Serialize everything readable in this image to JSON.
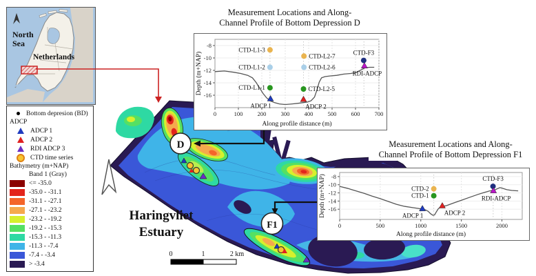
{
  "inset": {
    "sea_label": "North\nSea",
    "sea_label_1": "North",
    "sea_label_2": "Sea",
    "country_label": "Netherlands"
  },
  "legend": {
    "bd_label": "Bottom depresion (BD)",
    "adcp_header": "ADCP",
    "adcp_items": [
      {
        "label": "ADCP 1",
        "color": "#1f3bbf"
      },
      {
        "label": "ADCP 2",
        "color": "#e02020"
      },
      {
        "label": "RDI ADCP 3",
        "color": "#6a2fc4"
      }
    ],
    "ctd_label": "CTD time series",
    "bathy_header": "Bathymetry (m+NAP)",
    "band_label": "Band 1 (Gray)",
    "classes": [
      {
        "label": "<= -35.0",
        "color": "#8b0000"
      },
      {
        "label": "-35.0 - -31.1",
        "color": "#e3251c"
      },
      {
        "label": "-31.1 - -27.1",
        "color": "#f4652a"
      },
      {
        "label": "-27.1 - -23.2",
        "color": "#f5a94d"
      },
      {
        "label": "-23.2 - -19.2",
        "color": "#d7f02d"
      },
      {
        "label": "-19.2 - -15.3",
        "color": "#55e063"
      },
      {
        "label": "-15.3 - -11.3",
        "color": "#2ed9a3"
      },
      {
        "label": "-11.3 - -7.4",
        "color": "#3fb4e8"
      },
      {
        "label": "-7.4 - -3.4",
        "color": "#3a57d8"
      },
      {
        "label": "> -3.4",
        "color": "#2a1a53"
      }
    ]
  },
  "map": {
    "estuary_label_1": "Haringvliet",
    "estuary_label_2": "Estuary",
    "depression_d": "D",
    "depression_f1": "F1",
    "scalebar": {
      "t0": "0",
      "t1": "1",
      "t2": "2 km"
    }
  },
  "chart_data": [
    {
      "type": "line",
      "title_line1": "Measurement Locations and Along-",
      "title_line2": "Channel Profile of Bottom Depression D",
      "xlabel": "Along profile distance (m)",
      "ylabel": "Depth (m+NAP)",
      "xlim": [
        0,
        700
      ],
      "ylim": [
        -18,
        -7
      ],
      "xticks": [
        0,
        100,
        200,
        300,
        400,
        500,
        600,
        700
      ],
      "yticks": [
        -8,
        -10,
        -12,
        -14,
        -16
      ],
      "guides": [
        235,
        378,
        636
      ],
      "profile": [
        [
          0,
          -12.2
        ],
        [
          40,
          -12.1
        ],
        [
          80,
          -12.3
        ],
        [
          110,
          -12.5
        ],
        [
          140,
          -12.8
        ],
        [
          160,
          -13.2
        ],
        [
          175,
          -13.9
        ],
        [
          190,
          -14.8
        ],
        [
          205,
          -15.7
        ],
        [
          220,
          -16.4
        ],
        [
          235,
          -16.9
        ],
        [
          255,
          -17.2
        ],
        [
          275,
          -17.4
        ],
        [
          300,
          -17.5
        ],
        [
          330,
          -17.4
        ],
        [
          355,
          -17.3
        ],
        [
          375,
          -17.2
        ],
        [
          395,
          -17.1
        ],
        [
          410,
          -16.9
        ],
        [
          425,
          -16.3
        ],
        [
          435,
          -15.2
        ],
        [
          445,
          -13.9
        ],
        [
          455,
          -13.2
        ],
        [
          470,
          -13.0
        ],
        [
          490,
          -12.9
        ],
        [
          520,
          -12.8
        ],
        [
          550,
          -12.6
        ],
        [
          580,
          -12.5
        ],
        [
          605,
          -12.3
        ],
        [
          625,
          -11.9
        ],
        [
          640,
          -11.6
        ],
        [
          660,
          -11.5
        ],
        [
          680,
          -11.5
        ]
      ],
      "markers": [
        {
          "label": "CTD-L1-3",
          "x": 235,
          "y": -8.7,
          "shape": "circle",
          "color": "#eab44f",
          "side": "left"
        },
        {
          "label": "CTD-L2-7",
          "x": 380,
          "y": -9.7,
          "shape": "circle",
          "color": "#eab44f",
          "side": "right"
        },
        {
          "label": "CTD-F3",
          "x": 635,
          "y": -10.4,
          "shape": "circle",
          "color": "#1f3080",
          "side": "above"
        },
        {
          "label": "CTD-L1-2",
          "x": 235,
          "y": -11.5,
          "shape": "circle",
          "color": "#a9cfe8",
          "side": "left"
        },
        {
          "label": "CTD-L2-6",
          "x": 380,
          "y": -11.5,
          "shape": "circle",
          "color": "#a9cfe8",
          "side": "right"
        },
        {
          "label": "RDI-ADCP",
          "x": 638,
          "y": -11.3,
          "shape": "triangle",
          "color": "#bb16c9",
          "side": "below"
        },
        {
          "label": "CTD-L1-1",
          "x": 235,
          "y": -14.8,
          "shape": "circle",
          "color": "#28961f",
          "side": "left"
        },
        {
          "label": "CTD-L2-5",
          "x": 378,
          "y": -15.0,
          "shape": "circle",
          "color": "#28961f",
          "side": "right"
        },
        {
          "label": "ADCP 1",
          "x": 237,
          "y": -16.6,
          "shape": "triangle",
          "color": "#1f3bbf",
          "side": "below-left"
        },
        {
          "label": "ADCP 2",
          "x": 378,
          "y": -16.7,
          "shape": "triangle",
          "color": "#e02020",
          "side": "below-right"
        }
      ]
    },
    {
      "type": "line",
      "title_line1": "Measurement Locations and Along-",
      "title_line2": "Channel Profile of Bottom Depression F1",
      "xlabel": "Along profile distance (m)",
      "ylabel": "Depth (m+NAP)",
      "xlim": [
        0,
        2250
      ],
      "ylim": [
        -18.5,
        -7
      ],
      "xticks": [
        0,
        500,
        1000,
        1500,
        2000
      ],
      "yticks": [
        -8,
        -10,
        -12,
        -14,
        -16
      ],
      "guides": [
        1160,
        1892
      ],
      "profile": [
        [
          0,
          -10.4
        ],
        [
          100,
          -10.9
        ],
        [
          200,
          -11.5
        ],
        [
          300,
          -12.1
        ],
        [
          400,
          -12.8
        ],
        [
          500,
          -13.4
        ],
        [
          600,
          -14.1
        ],
        [
          700,
          -14.8
        ],
        [
          800,
          -15.3
        ],
        [
          900,
          -15.6
        ],
        [
          1000,
          -15.9
        ],
        [
          1050,
          -16.1
        ],
        [
          1090,
          -16.5
        ],
        [
          1120,
          -17.1
        ],
        [
          1150,
          -17.5
        ],
        [
          1170,
          -17.4
        ],
        [
          1190,
          -16.7
        ],
        [
          1215,
          -15.9
        ],
        [
          1240,
          -15.5
        ],
        [
          1270,
          -15.3
        ],
        [
          1320,
          -15.1
        ],
        [
          1400,
          -14.5
        ],
        [
          1500,
          -13.8
        ],
        [
          1600,
          -13.1
        ],
        [
          1700,
          -12.4
        ],
        [
          1780,
          -11.9
        ],
        [
          1850,
          -11.5
        ],
        [
          1900,
          -11.4
        ],
        [
          1940,
          -11.0
        ],
        [
          1975,
          -10.7
        ],
        [
          2010,
          -10.9
        ],
        [
          2060,
          -11.2
        ],
        [
          2120,
          -11.4
        ],
        [
          2200,
          -11.5
        ]
      ],
      "markers": [
        {
          "label": "CTD-2",
          "x": 1160,
          "y": -11.0,
          "shape": "circle",
          "color": "#eab44f",
          "side": "left"
        },
        {
          "label": "CTD-1",
          "x": 1160,
          "y": -12.7,
          "shape": "circle",
          "color": "#28961f",
          "side": "left"
        },
        {
          "label": "CTD-F3",
          "x": 1890,
          "y": -10.4,
          "shape": "circle",
          "color": "#1f3080",
          "side": "above"
        },
        {
          "label": "RDI-ADCP",
          "x": 1895,
          "y": -11.5,
          "shape": "triangle",
          "color": "#bb16c9",
          "side": "below"
        },
        {
          "label": "ADCP 1",
          "x": 1020,
          "y": -15.9,
          "shape": "triangle",
          "color": "#1f3bbf",
          "side": "below-left"
        },
        {
          "label": "ADCP 2",
          "x": 1265,
          "y": -15.2,
          "shape": "triangle",
          "color": "#e02020",
          "side": "below-right"
        }
      ]
    }
  ]
}
